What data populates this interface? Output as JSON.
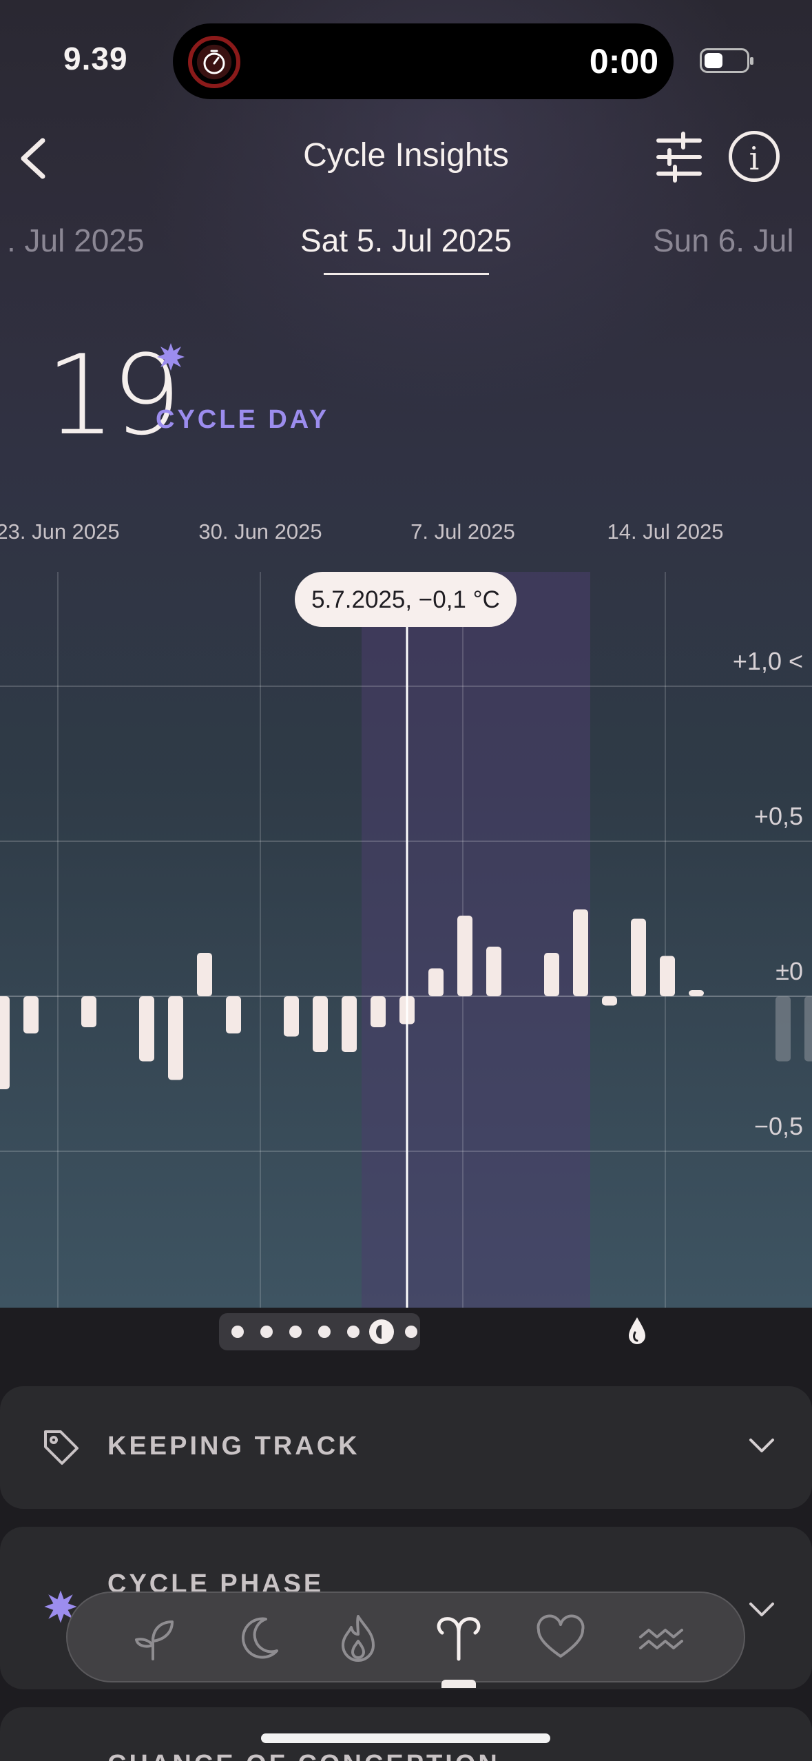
{
  "status_bar": {
    "time": "9.39",
    "timer": "0:00"
  },
  "header": {
    "title": "Cycle Insights"
  },
  "date_tabs": {
    "previous": ". Jul 2025",
    "current": "Sat 5. Jul 2025",
    "next": "Sun 6. Jul"
  },
  "cycle_day": {
    "number": "19",
    "label": "CYCLE DAY"
  },
  "chart_data": {
    "type": "bar",
    "x_axis_labels": [
      "23. Jun 2025",
      "30. Jun 2025",
      "7. Jul 2025",
      "14. Jul 2025"
    ],
    "y_tick_labels": [
      "+1,0 <",
      "+0,5",
      "±0",
      "−0,5"
    ],
    "ylim": [
      -1.0,
      1.2
    ],
    "tooltip": "5.7.2025, −0,1 °C",
    "selected_date": "2025-07-05",
    "highlight_range": [
      "2025-07-04",
      "2025-07-11"
    ],
    "days": [
      "2025-06-21",
      "2025-06-22",
      "2025-06-23",
      "2025-06-24",
      "2025-06-25",
      "2025-06-26",
      "2025-06-27",
      "2025-06-28",
      "2025-06-29",
      "2025-06-30",
      "2025-07-01",
      "2025-07-02",
      "2025-07-03",
      "2025-07-04",
      "2025-07-05",
      "2025-07-06",
      "2025-07-07",
      "2025-07-08",
      "2025-07-09",
      "2025-07-10",
      "2025-07-11",
      "2025-07-12",
      "2025-07-13",
      "2025-07-14",
      "2025-07-15",
      "2025-07-16",
      "2025-07-17",
      "2025-07-18",
      "2025-07-19"
    ],
    "values": [
      -0.3,
      -0.12,
      null,
      -0.1,
      null,
      -0.21,
      -0.27,
      0.14,
      -0.12,
      null,
      -0.13,
      -0.18,
      -0.18,
      -0.1,
      -0.09,
      0.09,
      0.26,
      0.16,
      null,
      0.14,
      0.28,
      -0.03,
      0.25,
      0.13,
      0.02,
      null,
      null,
      -0.21,
      -0.21
    ],
    "forecast_from": "2025-07-18"
  },
  "pager": {
    "count": 7,
    "active_index": 5
  },
  "cards": [
    {
      "title": "KEEPING TRACK",
      "icon": "tag-icon"
    },
    {
      "title": "CYCLE PHASE",
      "icon": "star-icon"
    },
    {
      "title": "CHANCE OF CONCEPTION",
      "icon": ""
    }
  ],
  "tabbar": {
    "items": [
      "sprout-icon",
      "moon-icon",
      "flame-icon",
      "aries-icon",
      "heart-icon",
      "aquarius-icon"
    ],
    "active_index": 3
  },
  "colors": {
    "accent": "#9c8dee",
    "bar": "#f4e9e6",
    "highlight": "#4a3e6b",
    "card": "#2a2a2d"
  }
}
